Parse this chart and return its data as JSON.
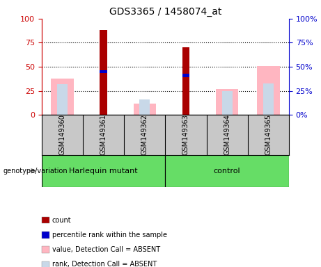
{
  "title": "GDS3365 / 1458074_at",
  "samples": [
    "GSM149360",
    "GSM149361",
    "GSM149362",
    "GSM149363",
    "GSM149364",
    "GSM149365"
  ],
  "count_values": [
    null,
    88,
    null,
    70,
    null,
    null
  ],
  "percentile_values": [
    null,
    45,
    null,
    41,
    null,
    null
  ],
  "absent_value": [
    38,
    null,
    12,
    null,
    27,
    51
  ],
  "absent_rank": [
    32,
    null,
    16,
    null,
    25,
    33
  ],
  "yticks": [
    0,
    25,
    50,
    75,
    100
  ],
  "count_color": "#AA0000",
  "percentile_color": "#0000CC",
  "absent_value_color": "#FFB6C1",
  "absent_rank_color": "#C8D8E8",
  "bg_color": "#C8C8C8",
  "group_bg": "#66DD66",
  "left_axis_color": "#CC0000",
  "right_axis_color": "#0000CC",
  "group_spans": {
    "Harlequin mutant": [
      0,
      2
    ],
    "control": [
      3,
      5
    ]
  },
  "legend_items": [
    [
      "#AA0000",
      "count"
    ],
    [
      "#0000CC",
      "percentile rank within the sample"
    ],
    [
      "#FFB6C1",
      "value, Detection Call = ABSENT"
    ],
    [
      "#C8D8E8",
      "rank, Detection Call = ABSENT"
    ]
  ]
}
